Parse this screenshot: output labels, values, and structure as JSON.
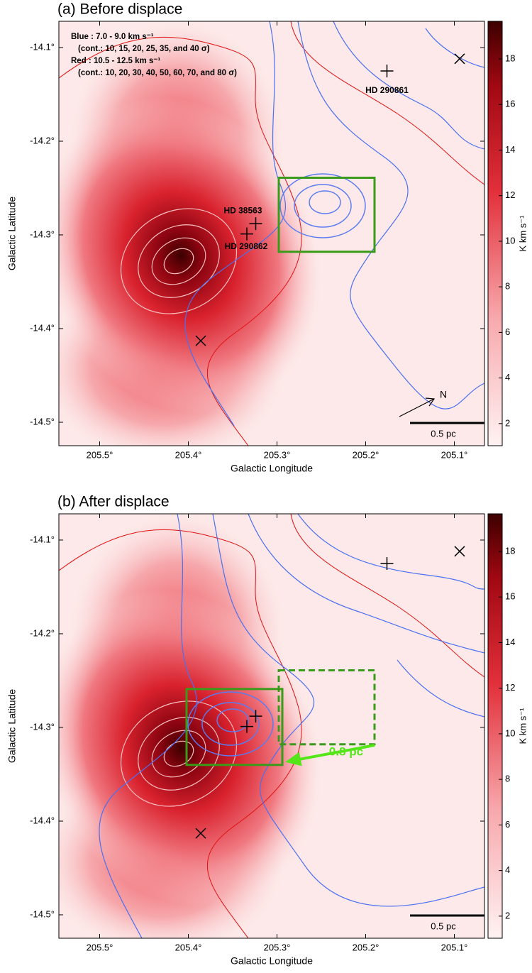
{
  "chart_data": [
    {
      "type": "map",
      "title": "(a) Before displace",
      "xlabel": "Galactic Longitude",
      "ylabel": "Galactic Latitude",
      "xlim": [
        205.546,
        205.066
      ],
      "ylim": [
        -14.525,
        -14.072
      ],
      "xticks": [
        {
          "value": 205.5,
          "label": "205.5°"
        },
        {
          "value": 205.4,
          "label": "205.4°"
        },
        {
          "value": 205.3,
          "label": "205.3°"
        },
        {
          "value": 205.2,
          "label": "205.2°"
        },
        {
          "value": 205.1,
          "label": "205.1°"
        }
      ],
      "yticks": [
        {
          "value": -14.1,
          "label": "-14.1°"
        },
        {
          "value": -14.2,
          "label": "-14.2°"
        },
        {
          "value": -14.3,
          "label": "-14.3°"
        },
        {
          "value": -14.4,
          "label": "-14.4°"
        },
        {
          "value": -14.5,
          "label": "-14.5°"
        }
      ],
      "colorbar": {
        "label": "K km s⁻¹",
        "lim": [
          1.03,
          19.65
        ],
        "ticks": [
          2,
          4,
          6,
          8,
          10,
          12,
          14,
          16,
          18
        ]
      },
      "legend_lines": [
        "Blue : 7.0 - 9.0 km s⁻¹",
        "(cont.: 10, 15, 20, 25, 35, and 40 σ)",
        "Red : 10.5 - 12.5 km s⁻¹",
        "(cont.: 10, 20, 30, 40, 50, 60, 70, and 80 σ)"
      ],
      "markers": [
        {
          "x": 205.176,
          "y": -14.125,
          "shape": "plus",
          "label": "HD 290861"
        },
        {
          "x": 205.324,
          "y": -14.288,
          "shape": "plus",
          "label": "HD 38563"
        },
        {
          "x": 205.334,
          "y": -14.299,
          "shape": "plus",
          "label": "HD 290862"
        },
        {
          "x": 205.094,
          "y": -14.112,
          "shape": "cross"
        },
        {
          "x": 205.386,
          "y": -14.413,
          "shape": "cross"
        }
      ],
      "boxes": [
        {
          "lon": [
            205.298,
            205.19
          ],
          "lat": [
            -14.239,
            -14.318
          ],
          "color": "#3a9a1a",
          "dashed": false
        }
      ],
      "scale_bar": "0.5 pc",
      "north": "N"
    },
    {
      "type": "map",
      "title": "(b) After displace",
      "xlabel": "Galactic Longitude",
      "ylabel": "Galactic Latitude",
      "xlim": [
        205.546,
        205.066
      ],
      "ylim": [
        -14.525,
        -14.072
      ],
      "xticks": [
        {
          "value": 205.5,
          "label": "205.5°"
        },
        {
          "value": 205.4,
          "label": "205.4°"
        },
        {
          "value": 205.3,
          "label": "205.3°"
        },
        {
          "value": 205.2,
          "label": "205.2°"
        },
        {
          "value": 205.1,
          "label": "205.1°"
        }
      ],
      "yticks": [
        {
          "value": -14.1,
          "label": "-14.1°"
        },
        {
          "value": -14.2,
          "label": "-14.2°"
        },
        {
          "value": -14.3,
          "label": "-14.3°"
        },
        {
          "value": -14.4,
          "label": "-14.4°"
        },
        {
          "value": -14.5,
          "label": "-14.5°"
        }
      ],
      "colorbar": {
        "label": "K km s⁻¹",
        "lim": [
          1.03,
          19.65
        ],
        "ticks": [
          2,
          4,
          6,
          8,
          10,
          12,
          14,
          16,
          18
        ]
      },
      "markers": [
        {
          "x": 205.176,
          "y": -14.125,
          "shape": "plus"
        },
        {
          "x": 205.324,
          "y": -14.288,
          "shape": "plus"
        },
        {
          "x": 205.334,
          "y": -14.299,
          "shape": "plus"
        },
        {
          "x": 205.094,
          "y": -14.112,
          "shape": "cross"
        },
        {
          "x": 205.386,
          "y": -14.413,
          "shape": "cross"
        }
      ],
      "boxes": [
        {
          "lon": [
            205.402,
            205.294
          ],
          "lat": [
            -14.259,
            -14.34
          ],
          "color": "#3a9a1a",
          "dashed": false
        },
        {
          "lon": [
            205.298,
            205.19
          ],
          "lat": [
            -14.239,
            -14.318
          ],
          "color": "#3a9a1a",
          "dashed": true
        }
      ],
      "arrow": {
        "from": [
          205.19,
          -14.319
        ],
        "to": [
          205.286,
          -14.336
        ],
        "label": "0.8 pc",
        "color": "#55e61a"
      },
      "scale_bar": "0.5 pc"
    }
  ]
}
